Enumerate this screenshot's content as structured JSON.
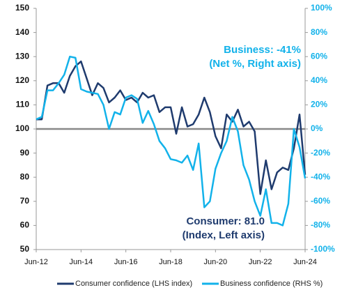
{
  "chart_data": {
    "type": "line",
    "categories": [
      "Jun-12",
      null,
      null,
      null,
      null,
      null,
      null,
      null,
      "Jun-14",
      null,
      null,
      null,
      null,
      null,
      null,
      null,
      "Jun-16",
      null,
      null,
      null,
      null,
      null,
      null,
      null,
      "Jun-18",
      null,
      null,
      null,
      null,
      null,
      null,
      null,
      "Jun-20",
      null,
      null,
      null,
      null,
      null,
      null,
      null,
      "Jun-22",
      null,
      null,
      null,
      null,
      null,
      null,
      null,
      "Jun-24"
    ],
    "series": [
      {
        "name": "Consumer confidence (LHS index)",
        "color": "#1f3b6e",
        "values": [
          104,
          104,
          118,
          119,
          119,
          115,
          122,
          126,
          128,
          121,
          114,
          119,
          117,
          111,
          113,
          116,
          112,
          113,
          111,
          115,
          113,
          114,
          107,
          109,
          109,
          98,
          109,
          101,
          102,
          106,
          113,
          107,
          97,
          92,
          106,
          103,
          108,
          101,
          103,
          99,
          73,
          87,
          75,
          82,
          84,
          83,
          92,
          106,
          81
        ]
      },
      {
        "name": "Business confidence (RHS %)",
        "color": "#12b2ea",
        "axis": "y2",
        "values": [
          8,
          10,
          32,
          32,
          38,
          45,
          60,
          59,
          33,
          31,
          30,
          29,
          20,
          0,
          14,
          12,
          26,
          28,
          25,
          5,
          15,
          4,
          -10,
          -16,
          -25,
          -26,
          -28,
          -22,
          -34,
          -12,
          -65,
          -60,
          -33,
          -20,
          -10,
          10,
          -2,
          -30,
          -42,
          -60,
          -72,
          -50,
          -78,
          -78,
          -80,
          -62,
          0,
          -15,
          -41
        ]
      }
    ],
    "ylim": [
      50,
      150
    ],
    "yticks": [
      50,
      60,
      70,
      80,
      90,
      100,
      110,
      120,
      130,
      140,
      150
    ],
    "y2lim": [
      -100,
      100
    ],
    "y2ticks": [
      {
        "value": -100,
        "label": "-100%"
      },
      {
        "value": -80,
        "label": "-80%"
      },
      {
        "value": -60,
        "label": "-60%"
      },
      {
        "value": -40,
        "label": "-40%"
      },
      {
        "value": -20,
        "label": "-20%"
      },
      {
        "value": 0,
        "label": "0%"
      },
      {
        "value": 20,
        "label": "20%"
      },
      {
        "value": 40,
        "label": "40%"
      },
      {
        "value": 60,
        "label": "60%"
      },
      {
        "value": 80,
        "label": "80%"
      },
      {
        "value": 100,
        "label": "100%"
      }
    ],
    "baseline": 100,
    "annotations": [
      {
        "lines": [
          "Business: -41%",
          "(Net %, Right axis)"
        ],
        "color": "#12b2ea"
      },
      {
        "lines": [
          "Consumer: 81.0",
          "(Index, Left axis)"
        ],
        "color": "#1f3b6e"
      }
    ],
    "legend": "bottom"
  }
}
